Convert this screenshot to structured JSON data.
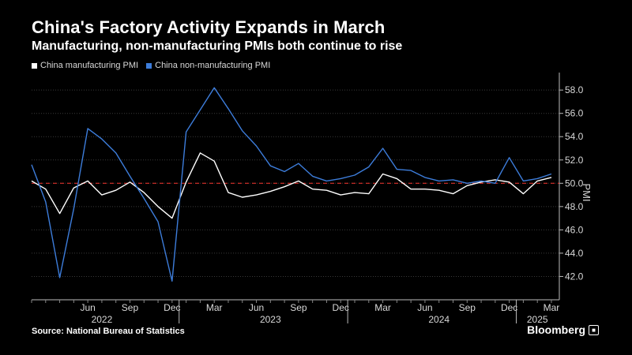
{
  "header": {
    "title": "China's Factory Activity Expands in March",
    "subtitle": "Manufacturing, non-manufacturing PMIs both continue to rise"
  },
  "footer": {
    "source": "Source: National Bureau of Statistics",
    "brand": "Bloomberg"
  },
  "colors": {
    "background": "#000000",
    "manufacturing": "#ffffff",
    "non_manufacturing": "#3d7ddb",
    "reference_line": "#d9302b",
    "grid": "#3a3a3a"
  },
  "chart_data": {
    "type": "line",
    "title": "China's Factory Activity Expands in March",
    "subtitle": "Manufacturing, non-manufacturing PMIs both continue to rise",
    "ylabel": "PMI",
    "xlabel": "",
    "ylim": [
      40.0,
      59.5
    ],
    "y_axis_position": "right",
    "y_ticks": [
      42.0,
      44.0,
      46.0,
      48.0,
      50.0,
      52.0,
      54.0,
      56.0,
      58.0
    ],
    "y_tick_labels": [
      "42.0",
      "44.0",
      "46.0",
      "48.0",
      "50.0",
      "52.0",
      "54.0",
      "56.0",
      "58.0"
    ],
    "reference_line": 50.0,
    "grid": true,
    "legend_placement": "top-left",
    "x": [
      "2022-02",
      "2022-03",
      "2022-04",
      "2022-05",
      "2022-06",
      "2022-07",
      "2022-08",
      "2022-09",
      "2022-10",
      "2022-11",
      "2022-12",
      "2023-01",
      "2023-02",
      "2023-03",
      "2023-04",
      "2023-05",
      "2023-06",
      "2023-07",
      "2023-08",
      "2023-09",
      "2023-10",
      "2023-11",
      "2023-12",
      "2024-01",
      "2024-02",
      "2024-03",
      "2024-04",
      "2024-05",
      "2024-06",
      "2024-07",
      "2024-08",
      "2024-09",
      "2024-10",
      "2024-11",
      "2024-12",
      "2025-01",
      "2025-02",
      "2025-03"
    ],
    "x_tick_labels": [
      {
        "month": "2022-06",
        "label": "Jun"
      },
      {
        "month": "2022-09",
        "label": "Sep"
      },
      {
        "month": "2022-12",
        "label": "Dec"
      },
      {
        "month": "2023-03",
        "label": "Mar"
      },
      {
        "month": "2023-06",
        "label": "Jun"
      },
      {
        "month": "2023-09",
        "label": "Sep"
      },
      {
        "month": "2023-12",
        "label": "Dec"
      },
      {
        "month": "2024-03",
        "label": "Mar"
      },
      {
        "month": "2024-06",
        "label": "Jun"
      },
      {
        "month": "2024-09",
        "label": "Sep"
      },
      {
        "month": "2024-12",
        "label": "Dec"
      },
      {
        "month": "2025-03",
        "label": "Mar"
      }
    ],
    "year_labels": [
      {
        "month": "2022-07",
        "label": "2022"
      },
      {
        "month": "2023-07",
        "label": "2023"
      },
      {
        "month": "2024-07",
        "label": "2024"
      },
      {
        "month": "2025-02",
        "label": "2025"
      }
    ],
    "year_separators": [
      "2023-01",
      "2024-01",
      "2025-01"
    ],
    "series": [
      {
        "name": "China manufacturing PMI",
        "color": "#ffffff",
        "values": [
          50.2,
          49.5,
          47.4,
          49.6,
          50.2,
          49.0,
          49.4,
          50.1,
          49.2,
          48.0,
          47.0,
          50.1,
          52.6,
          51.9,
          49.2,
          48.8,
          49.0,
          49.3,
          49.7,
          50.2,
          49.5,
          49.4,
          49.0,
          49.2,
          49.1,
          50.8,
          50.4,
          49.5,
          49.5,
          49.4,
          49.1,
          49.8,
          50.1,
          50.3,
          50.1,
          49.1,
          50.2,
          50.5
        ]
      },
      {
        "name": "China non-manufacturing PMI",
        "color": "#3d7ddb",
        "values": [
          51.6,
          48.4,
          41.9,
          47.8,
          54.7,
          53.8,
          52.6,
          50.6,
          48.7,
          46.7,
          41.6,
          54.4,
          56.3,
          58.2,
          56.4,
          54.5,
          53.2,
          51.5,
          51.0,
          51.7,
          50.6,
          50.2,
          50.4,
          50.7,
          51.4,
          53.0,
          51.2,
          51.1,
          50.5,
          50.2,
          50.3,
          50.0,
          50.2,
          50.0,
          52.2,
          50.2,
          50.4,
          50.8
        ]
      }
    ]
  }
}
